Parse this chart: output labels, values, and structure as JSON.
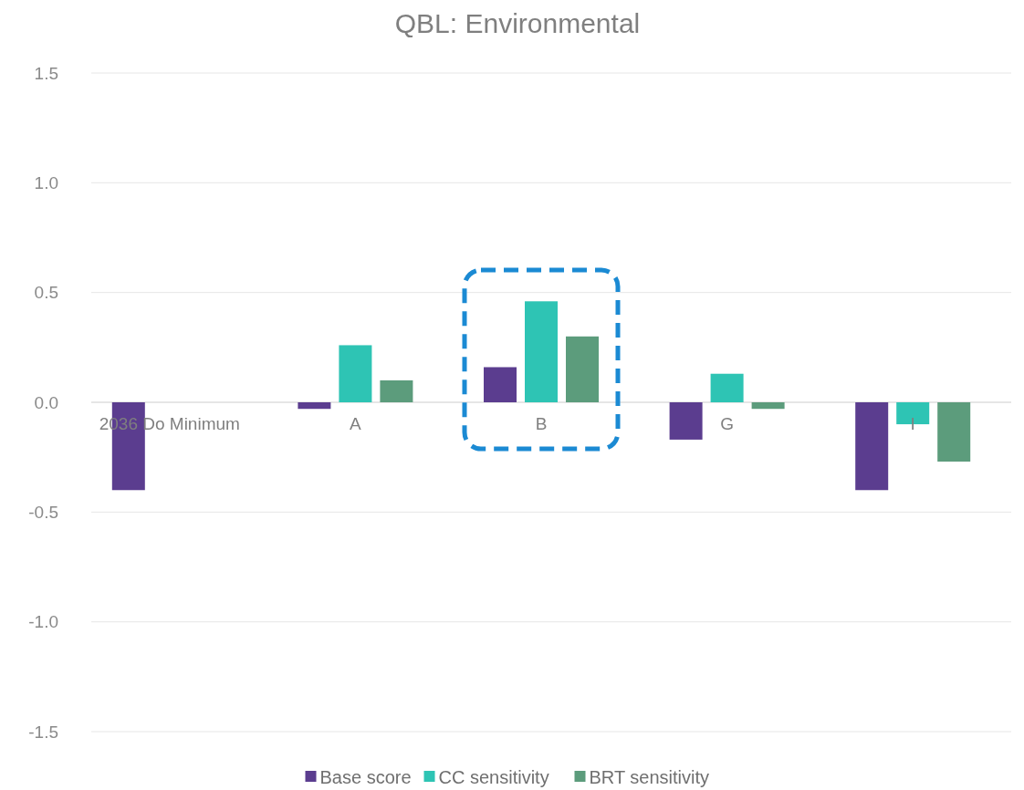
{
  "chart_data": {
    "type": "bar",
    "title": "QBL: Environmental",
    "categories": [
      "2036 Do Minimum",
      "A",
      "B",
      "G",
      "I"
    ],
    "series": [
      {
        "name": "Base score",
        "color": "#5b3d8f",
        "values": [
          -0.4,
          -0.03,
          0.16,
          -0.17,
          -0.4
        ]
      },
      {
        "name": "CC sensitivity",
        "color": "#2ec4b4",
        "values": [
          null,
          0.26,
          0.46,
          0.13,
          -0.1
        ]
      },
      {
        "name": "BRT sensitivity",
        "color": "#5c9c7c",
        "values": [
          null,
          0.1,
          0.3,
          -0.03,
          -0.27
        ]
      }
    ],
    "ylim": [
      -1.5,
      1.5
    ],
    "yticks": [
      {
        "value": -1.5,
        "label": "-1.5"
      },
      {
        "value": -1,
        "label": "-1.0"
      },
      {
        "value": -0.5,
        "label": "-0.5"
      },
      {
        "value": 0,
        "label": "0.0"
      },
      {
        "value": 0.5,
        "label": "0.5"
      },
      {
        "value": 1,
        "label": "1.0"
      },
      {
        "value": 1.5,
        "label": "1.5"
      }
    ],
    "grid": "y",
    "legend": "bottom"
  }
}
